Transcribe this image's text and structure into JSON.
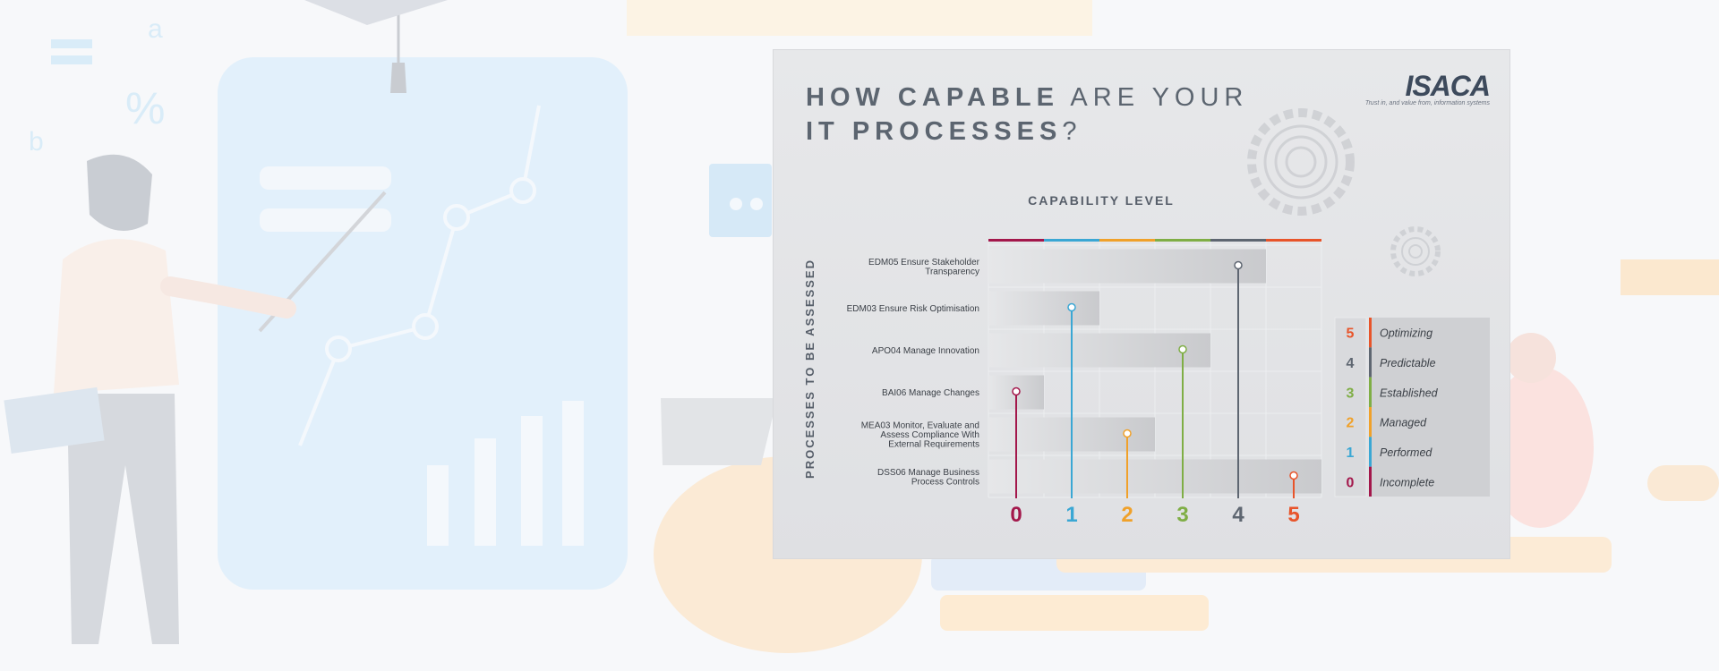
{
  "title": {
    "bold1": "HOW CAPABLE",
    "normal1": " ARE YOUR",
    "bold2": "IT PROCESSES",
    "normal2": "?"
  },
  "logo": {
    "name": "ISACA",
    "tagline": "Trust in, and value from, information systems"
  },
  "chart_data": {
    "type": "bar",
    "title": "CAPABILITY LEVEL",
    "ylabel": "PROCESSES TO BE ASSESSED",
    "categories": [
      "EDM05 Ensure Stakeholder Transparency",
      "EDM03 Ensure Risk Optimisation",
      "APO04 Manage Innovation",
      "BAI06 Manage Changes",
      "MEA03 Monitor, Evaluate and Assess Compliance With External Requirements",
      "DSS06 Manage Business Process Controls"
    ],
    "category_lines": [
      [
        "EDM05 Ensure Stakeholder",
        "Transparency"
      ],
      [
        "EDM03 Ensure Risk Optimisation"
      ],
      [
        "APO04 Manage Innovation"
      ],
      [
        "BAI06 Manage Changes"
      ],
      [
        "MEA03 Monitor, Evaluate and",
        "Assess Compliance With",
        "External Requirements"
      ],
      [
        "DSS06 Manage Business",
        "Process Controls"
      ]
    ],
    "values": [
      4,
      1,
      3,
      0,
      2,
      5
    ],
    "xlim": [
      0,
      5
    ],
    "xticks": [
      "0",
      "1",
      "2",
      "3",
      "4",
      "5"
    ],
    "level_colors": [
      "#a3174b",
      "#3aa7d4",
      "#f0a12a",
      "#7fae45",
      "#5e6671",
      "#e8542a"
    ],
    "legend": [
      {
        "level": "5",
        "label": "Optimizing"
      },
      {
        "level": "4",
        "label": "Predictable"
      },
      {
        "level": "3",
        "label": "Established"
      },
      {
        "level": "2",
        "label": "Managed"
      },
      {
        "level": "1",
        "label": "Performed"
      },
      {
        "level": "0",
        "label": "Incomplete"
      }
    ],
    "legend_placement": "right"
  }
}
